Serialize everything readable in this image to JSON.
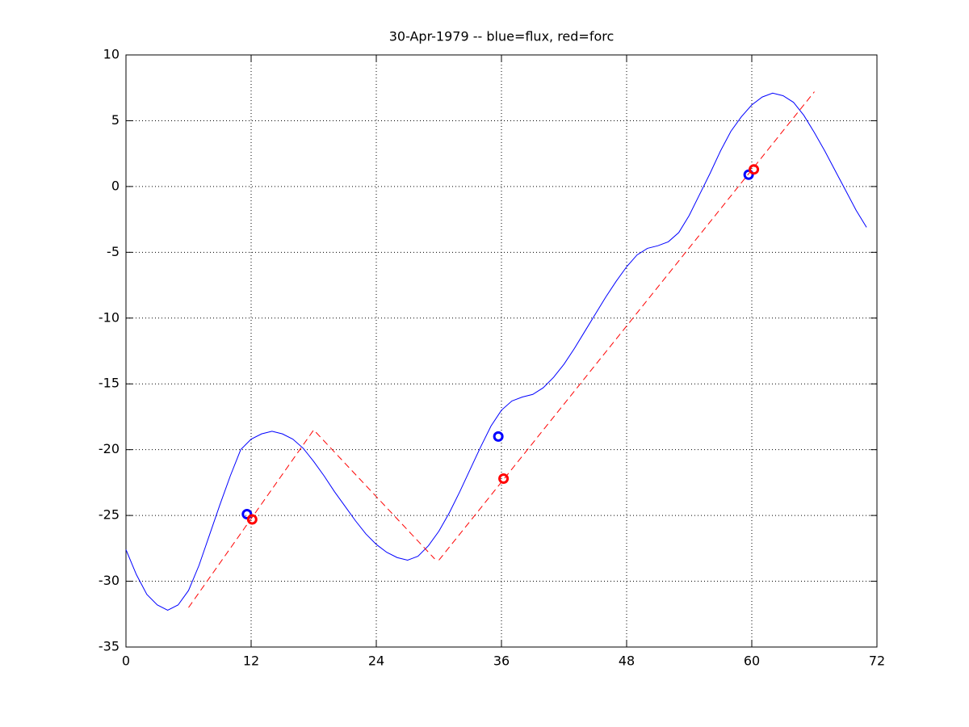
{
  "chart_data": {
    "type": "line",
    "title": "30-Apr-1979 -- blue=flux, red=forc",
    "xlim": [
      0,
      72
    ],
    "xticks": [
      0,
      12,
      24,
      36,
      48,
      60,
      72
    ],
    "ylim": [
      -35,
      10
    ],
    "yticks": [
      10,
      5,
      0,
      -5,
      -10,
      -15,
      -20,
      -25,
      -30,
      -35
    ],
    "grid": true,
    "series": [
      {
        "color": "#0000ff",
        "style": "solid",
        "x": [
          0,
          1,
          2,
          3,
          4,
          5,
          6,
          7,
          8,
          9,
          10,
          11,
          12,
          13,
          14,
          15,
          16,
          17,
          18,
          19,
          20,
          21,
          22,
          23,
          24,
          25,
          26,
          27,
          28,
          29,
          30,
          31,
          32,
          33,
          34,
          35,
          36,
          37,
          38,
          39,
          40,
          41,
          42,
          43,
          44,
          45,
          46,
          47,
          48,
          49,
          50,
          51,
          52,
          53,
          54,
          55,
          56,
          57,
          58,
          59,
          60,
          61,
          62,
          63,
          64,
          65,
          66,
          67,
          68,
          69,
          70,
          71
        ],
        "values": [
          -27.6,
          -29.5,
          -31,
          -31.8,
          -32.2,
          -31.8,
          -30.7,
          -28.8,
          -26.5,
          -24.2,
          -22,
          -20,
          -19.2,
          -18.8,
          -18.6,
          -18.8,
          -19.2,
          -19.9,
          -20.9,
          -22,
          -23.2,
          -24.3,
          -25.4,
          -26.4,
          -27.2,
          -27.8,
          -28.2,
          -28.4,
          -28.1,
          -27.3,
          -26.2,
          -24.8,
          -23.2,
          -21.5,
          -19.8,
          -18.2,
          -17,
          -16.3,
          -16,
          -15.8,
          -15.3,
          -14.5,
          -13.5,
          -12.3,
          -11,
          -9.7,
          -8.4,
          -7.2,
          -6.1,
          -5.2,
          -4.7,
          -4.5,
          -4.2,
          -3.5,
          -2.2,
          -0.6,
          1,
          2.7,
          4.2,
          5.3,
          6.2,
          6.8,
          7.1,
          6.9,
          6.4,
          5.4,
          4.1,
          2.7,
          1.2,
          -0.3,
          -1.8,
          -3.1
        ]
      },
      {
        "color": "#ff0000",
        "style": "dashed",
        "x": [
          6,
          18,
          29.6
        ],
        "values": [
          -32,
          -18.5,
          -28.3
        ]
      },
      {
        "color": "#ff0000",
        "style": "dashed",
        "x": [
          30,
          66
        ],
        "values": [
          -28.4,
          7.2
        ]
      },
      {
        "color": "#0000ff",
        "style": "marker",
        "x": [
          11.6,
          35.7,
          59.7
        ],
        "values": [
          -24.9,
          -19,
          0.9
        ]
      },
      {
        "color": "#ff0000",
        "style": "marker",
        "x": [
          12.1,
          36.2,
          60.2
        ],
        "values": [
          -25.3,
          -22.2,
          1.3
        ]
      }
    ]
  }
}
